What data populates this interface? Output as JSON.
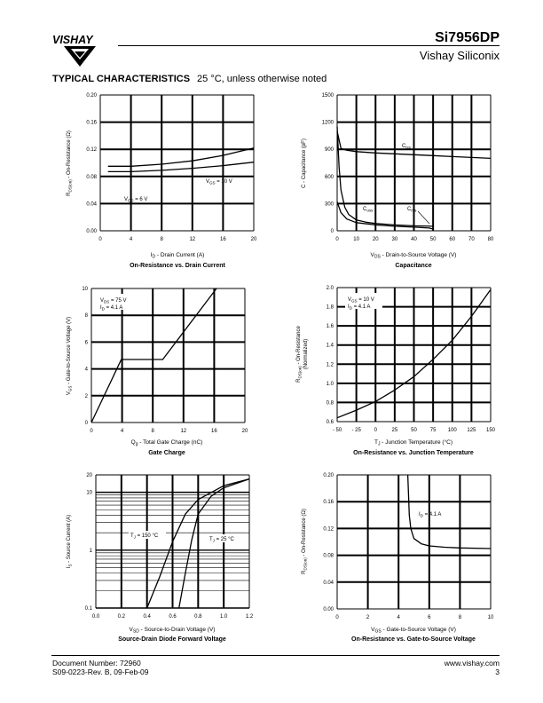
{
  "header": {
    "brand": "VISHAY",
    "part_number": "Si7956DP",
    "company": "Vishay Siliconix",
    "section_title": "TYPICAL CHARACTERISTICS",
    "section_note": "25 °C, unless otherwise noted"
  },
  "footer": {
    "doc_number": "Document Number: 72960",
    "revision": "S09-0223-Rev. B, 09-Feb-09",
    "website": "www.vishay.com",
    "page": "3"
  },
  "chart_data": [
    {
      "id": "rds_vs_id",
      "type": "line",
      "title": "On-Resistance vs. Drain Current",
      "xlabel": "I_D - Drain Current (A)",
      "ylabel": "R_DS(on) - On-Resistance (Ω)",
      "xlim": [
        0,
        20
      ],
      "ylim": [
        0,
        0.2
      ],
      "xticks": [
        "0",
        "4",
        "8",
        "12",
        "16",
        "20"
      ],
      "yticks": [
        "0.00",
        "0.04",
        "0.08",
        "0.12",
        "0.16",
        "0.20"
      ],
      "series": [
        {
          "name": "V_GS = 6 V",
          "x": [
            1,
            4,
            8,
            12,
            16,
            20
          ],
          "y": [
            0.095,
            0.095,
            0.098,
            0.103,
            0.111,
            0.122
          ]
        },
        {
          "name": "V_GS = 10 V",
          "x": [
            1,
            4,
            8,
            12,
            16,
            20
          ],
          "y": [
            0.087,
            0.087,
            0.089,
            0.092,
            0.096,
            0.101
          ]
        }
      ]
    },
    {
      "id": "capacitance",
      "type": "line",
      "title": "Capacitance",
      "xlabel": "V_DS - Drain-to-Source Voltage (V)",
      "ylabel": "C - Capacitance (pF)",
      "xlim": [
        0,
        80
      ],
      "ylim": [
        0,
        1500
      ],
      "xticks": [
        "0",
        "10",
        "20",
        "30",
        "40",
        "50",
        "60",
        "70",
        "80"
      ],
      "yticks": [
        "0",
        "300",
        "600",
        "900",
        "1200",
        "1500"
      ],
      "series": [
        {
          "name": "C_iss",
          "x": [
            0,
            2,
            5,
            10,
            20,
            30,
            40,
            50,
            60,
            70,
            80
          ],
          "y": [
            1100,
            910,
            890,
            875,
            860,
            850,
            840,
            830,
            820,
            810,
            800
          ]
        },
        {
          "name": "C_oss",
          "x": [
            0,
            1,
            2,
            4,
            6,
            10,
            15,
            20,
            30,
            40,
            50
          ],
          "y": [
            1150,
            700,
            450,
            260,
            180,
            120,
            95,
            80,
            65,
            55,
            50
          ]
        },
        {
          "name": "C_rss",
          "x": [
            0,
            2,
            5,
            10,
            20,
            30,
            40,
            48,
            50
          ],
          "y": [
            320,
            200,
            130,
            90,
            65,
            50,
            40,
            30,
            20
          ]
        }
      ]
    },
    {
      "id": "gate_charge",
      "type": "line",
      "title": "Gate Charge",
      "xlabel": "Q_g - Total Gate Charge (nC)",
      "ylabel": "V_GS - Gate-to-Source Voltage (V)",
      "xlim": [
        0,
        20
      ],
      "ylim": [
        0,
        10
      ],
      "xticks": [
        "0",
        "4",
        "8",
        "12",
        "16",
        "20"
      ],
      "yticks": [
        "0",
        "2",
        "4",
        "6",
        "8",
        "10"
      ],
      "annotation": [
        "V_DS = 75 V",
        "I_D = 4.1 A"
      ],
      "series": [
        {
          "name": "",
          "x": [
            0,
            3.9,
            9.3,
            16.3
          ],
          "y": [
            0,
            4.7,
            4.7,
            10
          ]
        }
      ]
    },
    {
      "id": "rds_vs_tj",
      "type": "line",
      "title": "On-Resistance vs. Junction Temperature",
      "xlabel": "T_J - Junction Temperature (°C)",
      "ylabel": "R_DS(on) - On-Resistance (Normalized)",
      "xlim": [
        -50,
        150
      ],
      "ylim": [
        0.6,
        2.0
      ],
      "xticks": [
        "- 50",
        "- 25",
        "0",
        "25",
        "50",
        "75",
        "100",
        "125",
        "150"
      ],
      "yticks": [
        "0.6",
        "0.8",
        "1.0",
        "1.2",
        "1.4",
        "1.6",
        "1.8",
        "2.0"
      ],
      "annotation": [
        "V_GS = 10 V",
        "I_D = 4.1 A"
      ],
      "series": [
        {
          "name": "",
          "x": [
            -50,
            -25,
            0,
            25,
            50,
            75,
            100,
            125,
            150
          ],
          "y": [
            0.64,
            0.72,
            0.81,
            0.93,
            1.07,
            1.25,
            1.45,
            1.7,
            1.98
          ]
        }
      ]
    },
    {
      "id": "diode_forward",
      "type": "line",
      "title": "Source-Drain Diode Forward Voltage",
      "xlabel": "V_SD - Source-to-Drain Voltage (V)",
      "ylabel": "I_S - Source Current (A)",
      "xlim": [
        0,
        1.2
      ],
      "ylim": [
        0.1,
        20
      ],
      "yscale": "log",
      "xticks": [
        "0.0",
        "0.2",
        "0.4",
        "0.6",
        "0.8",
        "1.0",
        "1.2"
      ],
      "yticks": [
        "0.1",
        "1",
        "10",
        "20"
      ],
      "series": [
        {
          "name": "T_J = 150 °C",
          "x": [
            0.4,
            0.5,
            0.6,
            0.7,
            0.8,
            1.0,
            1.2
          ],
          "y": [
            0.1,
            0.35,
            1.4,
            4.2,
            7.5,
            13,
            17
          ]
        },
        {
          "name": "T_J = 25 °C",
          "x": [
            0.65,
            0.7,
            0.75,
            0.8,
            0.9,
            1.0,
            1.2
          ],
          "y": [
            0.1,
            0.4,
            1.5,
            4.2,
            8.5,
            12,
            17
          ]
        }
      ]
    },
    {
      "id": "rds_vs_vgs",
      "type": "line",
      "title": "On-Resistance vs. Gate-to-Source Voltage",
      "xlabel": "V_GS - Gate-to-Source Voltage (V)",
      "ylabel": "R_DS(on) - On-Resistance (Ω)",
      "xlim": [
        0,
        10
      ],
      "ylim": [
        0,
        0.2
      ],
      "xticks": [
        "0",
        "2",
        "4",
        "6",
        "8",
        "10"
      ],
      "yticks": [
        "0.00",
        "0.04",
        "0.08",
        "0.12",
        "0.16",
        "0.20"
      ],
      "annotation": [
        "I_D = 4.1 A"
      ],
      "series": [
        {
          "name": "",
          "x": [
            4.6,
            4.7,
            4.8,
            5,
            5.5,
            6,
            7,
            8,
            10
          ],
          "y": [
            0.2,
            0.14,
            0.12,
            0.105,
            0.097,
            0.094,
            0.092,
            0.091,
            0.09
          ]
        }
      ]
    }
  ]
}
